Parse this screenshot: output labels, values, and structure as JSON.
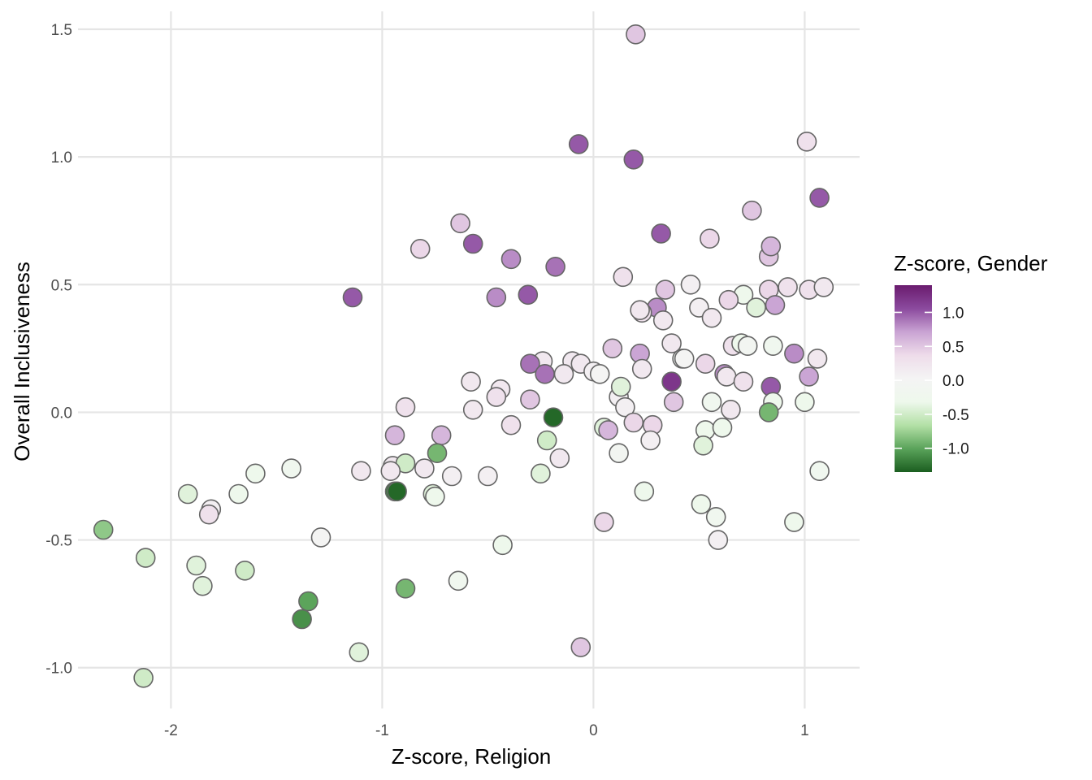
{
  "chart_data": {
    "type": "scatter",
    "xlabel": "Z-score, Religion",
    "ylabel": "Overall Inclusiveness",
    "xlim": [
      -2.44,
      1.26
    ],
    "ylim": [
      -1.16,
      1.57
    ],
    "x_ticks": [
      -2,
      -1,
      0,
      1
    ],
    "y_ticks": [
      -1.0,
      -0.5,
      0.0,
      0.5,
      1.0,
      1.5
    ],
    "x_tick_labels": [
      "-2",
      "-1",
      "0",
      "1"
    ],
    "y_tick_labels": [
      "-1.0",
      "-0.5",
      "0.0",
      "0.5",
      "1.0",
      "1.5"
    ],
    "grid": true,
    "legend": {
      "title": "Z-score, Gender",
      "placement": "right",
      "range": [
        -1.35,
        1.4
      ],
      "ticks": [
        1.0,
        0.5,
        0.0,
        -0.5,
        -1.0
      ],
      "tick_labels": [
        "1.0",
        "0.5",
        "0.0",
        "-0.5",
        "-1.0"
      ],
      "palette": [
        "#276419",
        "#4d9221",
        "#7fbc41",
        "#b8e186",
        "#e6f5d0",
        "#f7f7f7",
        "#fde0ef",
        "#f1b6da",
        "#de77ae",
        "#c51b7d"
      ],
      "colors": [
        "#1b5e20",
        "#5aa35a",
        "#b3e0a6",
        "#eef8ec",
        "#f4f4f4",
        "#eedcea",
        "#c9a3d3",
        "#8b4a9e",
        "#6a1b6e"
      ]
    },
    "points": [
      {
        "x": 0.2,
        "y": 1.48,
        "c": 0.5
      },
      {
        "x": -0.07,
        "y": 1.05,
        "c": 1.0
      },
      {
        "x": 0.19,
        "y": 0.99,
        "c": 1.0
      },
      {
        "x": 1.01,
        "y": 1.06,
        "c": 0.3
      },
      {
        "x": 1.07,
        "y": 0.84,
        "c": 1.0
      },
      {
        "x": 0.75,
        "y": 0.79,
        "c": 0.5
      },
      {
        "x": -0.63,
        "y": 0.74,
        "c": 0.5
      },
      {
        "x": -0.57,
        "y": 0.66,
        "c": 1.0
      },
      {
        "x": -0.82,
        "y": 0.64,
        "c": 0.4
      },
      {
        "x": 0.32,
        "y": 0.7,
        "c": 1.0
      },
      {
        "x": 0.55,
        "y": 0.68,
        "c": 0.4
      },
      {
        "x": -0.39,
        "y": 0.6,
        "c": 0.8
      },
      {
        "x": -0.18,
        "y": 0.57,
        "c": 0.9
      },
      {
        "x": 0.83,
        "y": 0.61,
        "c": 0.5
      },
      {
        "x": 0.84,
        "y": 0.65,
        "c": 0.6
      },
      {
        "x": -1.14,
        "y": 0.45,
        "c": 1.0
      },
      {
        "x": -0.46,
        "y": 0.45,
        "c": 0.8
      },
      {
        "x": -0.31,
        "y": 0.46,
        "c": 1.0
      },
      {
        "x": 0.14,
        "y": 0.53,
        "c": 0.3
      },
      {
        "x": 0.46,
        "y": 0.5,
        "c": 0.1
      },
      {
        "x": 0.34,
        "y": 0.48,
        "c": 0.5
      },
      {
        "x": 0.71,
        "y": 0.46,
        "c": -0.3
      },
      {
        "x": 0.83,
        "y": 0.48,
        "c": 0.4
      },
      {
        "x": 0.92,
        "y": 0.49,
        "c": 0.3
      },
      {
        "x": 1.02,
        "y": 0.48,
        "c": 0.3
      },
      {
        "x": 1.09,
        "y": 0.49,
        "c": 0.2
      },
      {
        "x": 0.3,
        "y": 0.41,
        "c": 0.8
      },
      {
        "x": 0.5,
        "y": 0.41,
        "c": 0.1
      },
      {
        "x": 0.23,
        "y": 0.39,
        "c": 0.3
      },
      {
        "x": 0.22,
        "y": 0.4,
        "c": 0.2
      },
      {
        "x": 0.64,
        "y": 0.44,
        "c": 0.4
      },
      {
        "x": 0.77,
        "y": 0.41,
        "c": -0.4
      },
      {
        "x": 0.86,
        "y": 0.42,
        "c": 0.7
      },
      {
        "x": 0.33,
        "y": 0.36,
        "c": 0.2
      },
      {
        "x": 0.56,
        "y": 0.37,
        "c": 0.2
      },
      {
        "x": 0.37,
        "y": 0.27,
        "c": 0.2
      },
      {
        "x": 0.66,
        "y": 0.26,
        "c": 0.3
      },
      {
        "x": 0.7,
        "y": 0.27,
        "c": -0.3
      },
      {
        "x": 0.73,
        "y": 0.26,
        "c": -0.1
      },
      {
        "x": 0.85,
        "y": 0.26,
        "c": -0.2
      },
      {
        "x": 0.09,
        "y": 0.25,
        "c": 0.5
      },
      {
        "x": 0.22,
        "y": 0.23,
        "c": 0.7
      },
      {
        "x": 0.42,
        "y": 0.21,
        "c": -0.1
      },
      {
        "x": 0.43,
        "y": 0.21,
        "c": 0.0
      },
      {
        "x": 0.95,
        "y": 0.23,
        "c": 0.8
      },
      {
        "x": 1.06,
        "y": 0.21,
        "c": 0.2
      },
      {
        "x": -0.24,
        "y": 0.2,
        "c": 0.2
      },
      {
        "x": -0.1,
        "y": 0.2,
        "c": 0.2
      },
      {
        "x": -0.06,
        "y": 0.19,
        "c": 0.2
      },
      {
        "x": -0.3,
        "y": 0.19,
        "c": 0.9
      },
      {
        "x": 0.53,
        "y": 0.19,
        "c": 0.4
      },
      {
        "x": 0.0,
        "y": 0.16,
        "c": 0.1
      },
      {
        "x": 0.03,
        "y": 0.15,
        "c": 0.0
      },
      {
        "x": -0.14,
        "y": 0.15,
        "c": 0.2
      },
      {
        "x": -0.23,
        "y": 0.15,
        "c": 0.9
      },
      {
        "x": 0.23,
        "y": 0.17,
        "c": 0.2
      },
      {
        "x": 0.62,
        "y": 0.15,
        "c": 0.8
      },
      {
        "x": 0.63,
        "y": 0.14,
        "c": 0.2
      },
      {
        "x": 0.71,
        "y": 0.12,
        "c": 0.3
      },
      {
        "x": 0.37,
        "y": 0.12,
        "c": 1.2
      },
      {
        "x": 1.02,
        "y": 0.14,
        "c": 0.7
      },
      {
        "x": -0.58,
        "y": 0.12,
        "c": 0.2
      },
      {
        "x": -0.44,
        "y": 0.09,
        "c": 0.2
      },
      {
        "x": 0.12,
        "y": 0.06,
        "c": 0.1
      },
      {
        "x": 0.13,
        "y": 0.1,
        "c": -0.4
      },
      {
        "x": 0.84,
        "y": 0.1,
        "c": 1.0
      },
      {
        "x": -0.46,
        "y": 0.06,
        "c": 0.3
      },
      {
        "x": -0.3,
        "y": 0.05,
        "c": 0.5
      },
      {
        "x": 0.38,
        "y": 0.04,
        "c": 0.5
      },
      {
        "x": 0.56,
        "y": 0.04,
        "c": -0.2
      },
      {
        "x": 0.85,
        "y": 0.04,
        "c": -0.3
      },
      {
        "x": 1.0,
        "y": 0.04,
        "c": -0.3
      },
      {
        "x": -0.89,
        "y": 0.02,
        "c": 0.3
      },
      {
        "x": -0.57,
        "y": 0.01,
        "c": 0.2
      },
      {
        "x": 0.15,
        "y": 0.02,
        "c": 0.1
      },
      {
        "x": 0.65,
        "y": 0.01,
        "c": 0.2
      },
      {
        "x": 0.83,
        "y": 0.0,
        "c": -0.9
      },
      {
        "x": -0.19,
        "y": -0.02,
        "c": -1.3
      },
      {
        "x": 0.19,
        "y": -0.04,
        "c": 0.4
      },
      {
        "x": 0.28,
        "y": -0.05,
        "c": 0.4
      },
      {
        "x": -0.39,
        "y": -0.05,
        "c": 0.3
      },
      {
        "x": 0.05,
        "y": -0.06,
        "c": -0.4
      },
      {
        "x": 0.07,
        "y": -0.07,
        "c": 0.6
      },
      {
        "x": 0.53,
        "y": -0.07,
        "c": -0.3
      },
      {
        "x": 0.61,
        "y": -0.06,
        "c": -0.3
      },
      {
        "x": -0.94,
        "y": -0.09,
        "c": 0.6
      },
      {
        "x": -0.72,
        "y": -0.09,
        "c": 0.6
      },
      {
        "x": 0.27,
        "y": -0.11,
        "c": 0.1
      },
      {
        "x": -0.22,
        "y": -0.11,
        "c": -0.5
      },
      {
        "x": 0.52,
        "y": -0.13,
        "c": -0.4
      },
      {
        "x": -0.74,
        "y": -0.16,
        "c": -0.9
      },
      {
        "x": 0.12,
        "y": -0.16,
        "c": -0.1
      },
      {
        "x": -0.16,
        "y": -0.18,
        "c": 0.2
      },
      {
        "x": -0.95,
        "y": -0.21,
        "c": 0.2
      },
      {
        "x": -0.89,
        "y": -0.2,
        "c": -0.5
      },
      {
        "x": -0.8,
        "y": -0.22,
        "c": 0.2
      },
      {
        "x": -1.1,
        "y": -0.23,
        "c": 0.2
      },
      {
        "x": -0.96,
        "y": -0.23,
        "c": 0.2
      },
      {
        "x": -0.67,
        "y": -0.25,
        "c": 0.1
      },
      {
        "x": -0.5,
        "y": -0.25,
        "c": 0.1
      },
      {
        "x": -0.25,
        "y": -0.24,
        "c": -0.4
      },
      {
        "x": 1.07,
        "y": -0.23,
        "c": -0.2
      },
      {
        "x": -1.43,
        "y": -0.22,
        "c": -0.2
      },
      {
        "x": -1.6,
        "y": -0.24,
        "c": -0.3
      },
      {
        "x": -0.94,
        "y": -0.31,
        "c": -1.2
      },
      {
        "x": -0.93,
        "y": -0.31,
        "c": -1.3
      },
      {
        "x": -0.76,
        "y": -0.32,
        "c": -0.4
      },
      {
        "x": -0.75,
        "y": -0.33,
        "c": -0.3
      },
      {
        "x": 0.24,
        "y": -0.31,
        "c": -0.3
      },
      {
        "x": -1.92,
        "y": -0.32,
        "c": -0.4
      },
      {
        "x": -1.68,
        "y": -0.32,
        "c": -0.3
      },
      {
        "x": -1.81,
        "y": -0.38,
        "c": 0.1
      },
      {
        "x": -1.82,
        "y": -0.4,
        "c": 0.3
      },
      {
        "x": 0.51,
        "y": -0.36,
        "c": -0.3
      },
      {
        "x": 0.58,
        "y": -0.41,
        "c": -0.2
      },
      {
        "x": 0.95,
        "y": -0.43,
        "c": -0.3
      },
      {
        "x": 0.05,
        "y": -0.43,
        "c": 0.4
      },
      {
        "x": -1.29,
        "y": -0.49,
        "c": 0.0
      },
      {
        "x": 0.59,
        "y": -0.5,
        "c": 0.1
      },
      {
        "x": -0.43,
        "y": -0.52,
        "c": -0.3
      },
      {
        "x": -2.32,
        "y": -0.46,
        "c": -0.8
      },
      {
        "x": -2.12,
        "y": -0.57,
        "c": -0.5
      },
      {
        "x": -1.88,
        "y": -0.6,
        "c": -0.4
      },
      {
        "x": -1.85,
        "y": -0.68,
        "c": -0.4
      },
      {
        "x": -1.65,
        "y": -0.62,
        "c": -0.5
      },
      {
        "x": -0.64,
        "y": -0.66,
        "c": -0.2
      },
      {
        "x": -0.89,
        "y": -0.69,
        "c": -0.9
      },
      {
        "x": -1.35,
        "y": -0.74,
        "c": -1.0
      },
      {
        "x": -1.38,
        "y": -0.81,
        "c": -1.1
      },
      {
        "x": -1.11,
        "y": -0.94,
        "c": -0.4
      },
      {
        "x": -0.06,
        "y": -0.92,
        "c": 0.5
      },
      {
        "x": -2.13,
        "y": -1.04,
        "c": -0.5
      }
    ]
  }
}
